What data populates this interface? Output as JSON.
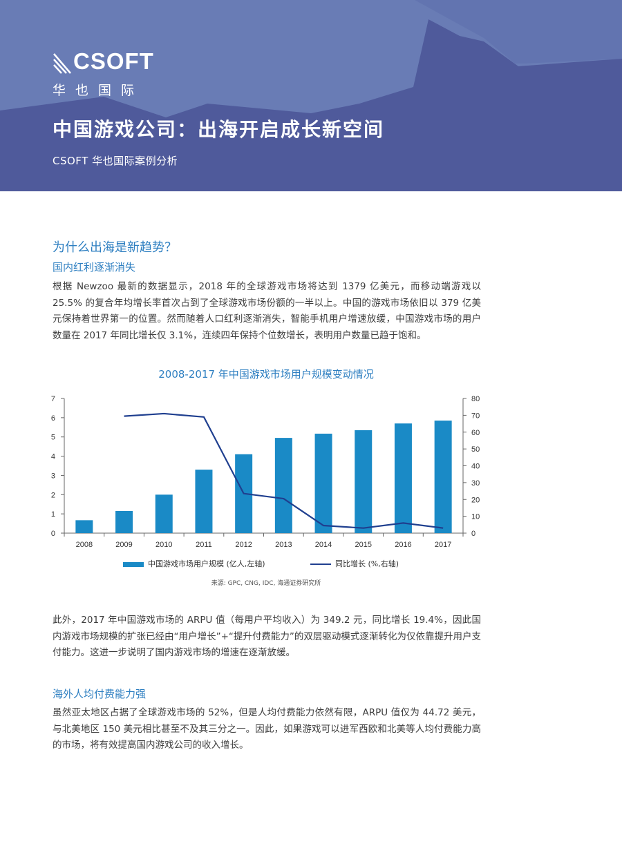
{
  "header": {
    "logo_word": "CSOFT",
    "logo_cn": "华也国际",
    "title": "中国游戏公司：出海开启成长新空间",
    "subtitle": "CSOFT 华也国际案例分析",
    "colors": {
      "band": "#4f5a9b",
      "light": "#6a7db5",
      "accent": "#2e7fc1"
    }
  },
  "section": {
    "question": "为什么出海是新趋势？",
    "h1": "国内红利逐渐消失",
    "p1": "根据 Newzoo 最新的数据显示，2018 年的全球游戏市场将达到 1379 亿美元，而移动端游戏以 25.5% 的复合年均增长率首次占到了全球游戏市场份额的一半以上。中国的游戏市场依旧以 379 亿美元保持着世界第一的位置。然而随着人口红利逐渐消失，智能手机用户增速放缓，中国游戏市场的用户数量在 2017 年同比增长仅 3.1%，连续四年保持个位数增长，表明用户数量已趋于饱和。",
    "p2": "此外，2017 年中国游戏市场的 ARPU 值（每用户平均收入）为 349.2 元，同比增长 19.4%，因此国内游戏市场规模的扩张已经由“用户增长”+“提升付费能力”的双层驱动模式逐渐转化为仅依靠提升用户支付能力。这进一步说明了国内游戏市场的增速在逐渐放缓。",
    "h2": "海外人均付费能力强",
    "p3": "虽然亚太地区占据了全球游戏市场的 52%，但是人均付费能力依然有限，ARPU 值仅为 44.72 美元，与北美地区 150 美元相比甚至不及其三分之一。因此，如果游戏可以进军西欧和北美等人均付费能力高的市场，将有效提高国内游戏公司的收入增长。"
  },
  "chart_data": {
    "type": "bar",
    "title": "2008-2017 年中国游戏市场用户规模变动情况",
    "categories": [
      "2008",
      "2009",
      "2010",
      "2011",
      "2012",
      "2013",
      "2014",
      "2015",
      "2016",
      "2017"
    ],
    "series": [
      {
        "name": "中国游戏市场用户规模 (亿人,左轴)",
        "kind": "bar",
        "axis": "left",
        "color": "#1a8ac6",
        "values": [
          0.67,
          1.15,
          2.0,
          3.3,
          4.1,
          4.95,
          5.17,
          5.35,
          5.7,
          5.85
        ]
      },
      {
        "name": "同比增长 (%,右轴)",
        "kind": "line",
        "axis": "right",
        "color": "#1f3f8f",
        "values": [
          null,
          69.5,
          71,
          69,
          23.5,
          20.5,
          4.5,
          3,
          6,
          3
        ]
      }
    ],
    "yleft": {
      "min": 0,
      "max": 7,
      "ticks": [
        "0",
        "1",
        "2",
        "3",
        "4",
        "5",
        "6",
        "7"
      ]
    },
    "yright": {
      "min": 0,
      "max": 80,
      "ticks": [
        "0",
        "10",
        "20",
        "30",
        "40",
        "50",
        "60",
        "70",
        "80"
      ]
    },
    "legend_position": "bottom",
    "grid": false,
    "source": "来源: GPC, CNG, IDC, 海通证券研究所"
  }
}
